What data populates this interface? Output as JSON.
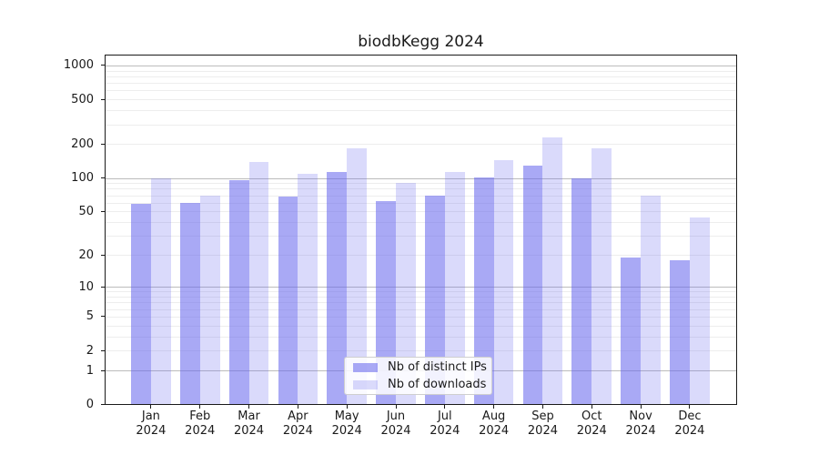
{
  "chart_data": {
    "type": "bar",
    "title": "biodbKegg 2024",
    "scale": "log1p",
    "grid": true,
    "legend_position": "lower-center",
    "xlabel": "",
    "ylabel": "",
    "ylim": [
      0,
      1260
    ],
    "yticks": [
      0,
      1,
      2,
      5,
      10,
      20,
      50,
      100,
      200,
      500,
      1000
    ],
    "minor_gridlines": [
      2,
      3,
      4,
      5,
      6,
      7,
      8,
      9,
      20,
      30,
      40,
      50,
      60,
      70,
      80,
      90,
      200,
      300,
      400,
      500,
      600,
      700,
      800,
      900
    ],
    "major_gridlines": [
      1,
      10,
      100,
      1000
    ],
    "categories": [
      {
        "month": "Jan",
        "year": "2024"
      },
      {
        "month": "Feb",
        "year": "2024"
      },
      {
        "month": "Mar",
        "year": "2024"
      },
      {
        "month": "Apr",
        "year": "2024"
      },
      {
        "month": "May",
        "year": "2024"
      },
      {
        "month": "Jun",
        "year": "2024"
      },
      {
        "month": "Jul",
        "year": "2024"
      },
      {
        "month": "Aug",
        "year": "2024"
      },
      {
        "month": "Sep",
        "year": "2024"
      },
      {
        "month": "Oct",
        "year": "2024"
      },
      {
        "month": "Nov",
        "year": "2024"
      },
      {
        "month": "Dec",
        "year": "2024"
      }
    ],
    "series": [
      {
        "name": "Nb of distinct IPs",
        "hex": "#6666ee",
        "alpha": 0.56,
        "rendered_hex": "#aaaaf5",
        "values": [
          59,
          60,
          95,
          68,
          114,
          62,
          69,
          102,
          130,
          100,
          19,
          18
        ]
      },
      {
        "name": "Nb of downloads",
        "hex": "#6666ee",
        "alpha": 0.24,
        "rendered_hex": "#d9d9fa",
        "values": [
          100,
          69,
          140,
          108,
          185,
          91,
          113,
          144,
          230,
          184,
          70,
          44
        ]
      }
    ],
    "colors": {
      "background": "#ffffff",
      "spine": "#1a1a1a",
      "major_grid": "#bcbcbc",
      "minor_grid": "#ededed",
      "text": "#1a1a1a"
    }
  }
}
